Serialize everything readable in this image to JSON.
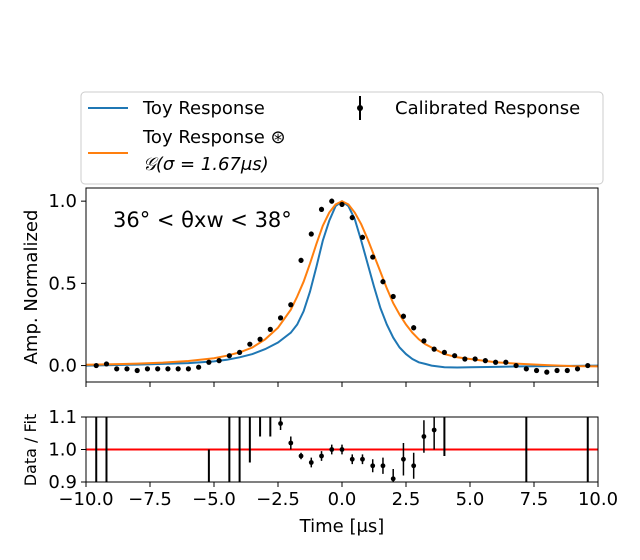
{
  "colors": {
    "toy": "#1f77b4",
    "conv": "#ff7f0e",
    "data": "#000000",
    "ratio_line": "#ff0000",
    "frame": "#000000"
  },
  "legend": {
    "toy": "Toy Response",
    "conv_line1": "Toy Response ⊛",
    "conv_line2": "𝒢(σ = 1.67μs)",
    "data": "Calibrated Response"
  },
  "main": {
    "annotation": "36° < θxw < 38°",
    "ylabel": "Amp. Normalized",
    "yticks": [
      0.0,
      0.5,
      1.0
    ],
    "ytick_labels": [
      "0.0",
      "0.5",
      "1.0"
    ]
  },
  "ratio": {
    "ylabel": "Data / Fit",
    "xlabel": "Time [μs]",
    "yticks": [
      0.9,
      1.0,
      1.1
    ],
    "ytick_labels": [
      "0.9",
      "1.0",
      "1.1"
    ],
    "xticks": [
      -10,
      -7.5,
      -5,
      -2.5,
      0,
      2.5,
      5,
      7.5,
      10
    ],
    "xtick_labels": [
      "−10.0",
      "−7.5",
      "−5.0",
      "−2.5",
      "0.0",
      "2.5",
      "5.0",
      "7.5",
      "10.0"
    ]
  },
  "chart_data": [
    {
      "type": "line",
      "panel": "main",
      "xlim": [
        -10,
        10
      ],
      "ylim": [
        -0.1,
        1.08
      ],
      "xlabel": "",
      "ylabel": "Amp. Normalized",
      "legend_placement": "above",
      "series": [
        {
          "name": "Toy Response",
          "x": [
            -10,
            -9,
            -8,
            -7,
            -6,
            -5,
            -4.5,
            -4,
            -3.5,
            -3,
            -2.5,
            -2,
            -1.75,
            -1.5,
            -1.25,
            -1,
            -0.75,
            -0.5,
            -0.25,
            0,
            0.25,
            0.5,
            0.75,
            1,
            1.25,
            1.5,
            1.75,
            2,
            2.25,
            2.5,
            2.75,
            3,
            3.25,
            3.5,
            4,
            4.5,
            5,
            6,
            7,
            8,
            9,
            10
          ],
          "y": [
            0.0,
            0.003,
            0.006,
            0.01,
            0.015,
            0.025,
            0.035,
            0.05,
            0.07,
            0.1,
            0.14,
            0.2,
            0.25,
            0.33,
            0.45,
            0.6,
            0.76,
            0.88,
            0.97,
            1.0,
            0.97,
            0.89,
            0.76,
            0.62,
            0.48,
            0.35,
            0.25,
            0.17,
            0.11,
            0.07,
            0.04,
            0.02,
            0.01,
            0.0,
            -0.01,
            -0.012,
            -0.01,
            -0.008,
            -0.005,
            -0.003,
            -0.002,
            0.0
          ]
        },
        {
          "name": "Toy Response ⊛ 𝒢(σ = 1.67μs)",
          "x": [
            -10,
            -9,
            -8,
            -7,
            -6,
            -5,
            -4.5,
            -4,
            -3.5,
            -3,
            -2.5,
            -2,
            -1.75,
            -1.5,
            -1.25,
            -1,
            -0.75,
            -0.5,
            -0.25,
            0,
            0.25,
            0.5,
            0.75,
            1,
            1.25,
            1.5,
            1.75,
            2,
            2.25,
            2.5,
            2.75,
            3,
            3.25,
            3.5,
            4,
            4.5,
            5,
            6,
            7,
            8,
            9,
            10
          ],
          "y": [
            0.005,
            0.008,
            0.012,
            0.018,
            0.028,
            0.045,
            0.06,
            0.08,
            0.11,
            0.16,
            0.23,
            0.34,
            0.42,
            0.51,
            0.62,
            0.74,
            0.85,
            0.93,
            0.98,
            1.0,
            0.98,
            0.93,
            0.86,
            0.77,
            0.67,
            0.57,
            0.47,
            0.38,
            0.31,
            0.25,
            0.2,
            0.16,
            0.13,
            0.11,
            0.07,
            0.05,
            0.04,
            0.02,
            0.01,
            0.003,
            -0.003,
            -0.005
          ]
        },
        {
          "name": "Calibrated Response",
          "x": [
            -9.6,
            -9.2,
            -8.8,
            -8.4,
            -8.0,
            -7.6,
            -7.2,
            -6.8,
            -6.4,
            -6.0,
            -5.6,
            -5.2,
            -4.8,
            -4.4,
            -4.0,
            -3.6,
            -3.2,
            -2.8,
            -2.4,
            -2.0,
            -1.6,
            -1.2,
            -0.8,
            -0.4,
            0.0,
            0.4,
            0.8,
            1.2,
            1.6,
            2.0,
            2.4,
            2.8,
            3.2,
            3.6,
            4.0,
            4.4,
            4.8,
            5.2,
            5.6,
            6.0,
            6.4,
            6.8,
            7.2,
            7.6,
            8.0,
            8.4,
            8.8,
            9.2,
            9.6
          ],
          "y": [
            0.0,
            0.01,
            -0.02,
            -0.02,
            -0.03,
            -0.02,
            -0.02,
            -0.02,
            -0.02,
            -0.02,
            -0.01,
            0.02,
            0.03,
            0.06,
            0.08,
            0.13,
            0.16,
            0.22,
            0.29,
            0.37,
            0.64,
            0.8,
            0.95,
            1.0,
            0.98,
            0.9,
            0.78,
            0.66,
            0.51,
            0.42,
            0.3,
            0.23,
            0.15,
            0.1,
            0.08,
            0.06,
            0.04,
            0.04,
            0.03,
            0.02,
            0.02,
            0.0,
            -0.02,
            -0.03,
            -0.04,
            -0.03,
            -0.03,
            -0.02,
            0.0
          ],
          "yerr": [
            0.01,
            0.01,
            0.01,
            0.01,
            0.01,
            0.01,
            0.01,
            0.01,
            0.01,
            0.01,
            0.01,
            0.01,
            0.01,
            0.01,
            0.01,
            0.01,
            0.01,
            0.01,
            0.01,
            0.01,
            0.015,
            0.015,
            0.015,
            0.015,
            0.015,
            0.015,
            0.015,
            0.015,
            0.015,
            0.015,
            0.015,
            0.015,
            0.01,
            0.01,
            0.01,
            0.01,
            0.01,
            0.01,
            0.01,
            0.01,
            0.01,
            0.01,
            0.01,
            0.01,
            0.01,
            0.01,
            0.01,
            0.01,
            0.01
          ]
        }
      ]
    },
    {
      "type": "scatter",
      "panel": "ratio",
      "xlim": [
        -10,
        10
      ],
      "ylim": [
        0.9,
        1.1
      ],
      "xlabel": "Time [μs]",
      "ylabel": "Data / Fit",
      "reference_line": 1.0,
      "series": [
        {
          "name": "",
          "x": [
            -2.4,
            -2.0,
            -1.6,
            -1.2,
            -0.8,
            -0.4,
            0.0,
            0.4,
            0.8,
            1.2,
            1.6,
            2.0,
            2.4,
            2.8,
            3.2,
            3.6
          ],
          "y": [
            1.08,
            1.02,
            0.98,
            0.96,
            0.98,
            1.0,
            1.0,
            0.97,
            0.97,
            0.95,
            0.95,
            0.91,
            0.97,
            0.95,
            1.04,
            1.06
          ],
          "yerr": [
            0.02,
            0.02,
            0.01,
            0.015,
            0.015,
            0.015,
            0.015,
            0.015,
            0.015,
            0.02,
            0.025,
            0.03,
            0.05,
            0.04,
            0.05,
            0.06
          ]
        },
        {
          "name": "",
          "x": [
            -9.6,
            -9.2,
            -5.2,
            -4.4,
            -4.0,
            -3.6,
            -3.2,
            -2.8,
            4.0,
            7.2,
            9.6
          ],
          "ylo": [
            0.9,
            0.9,
            0.9,
            0.9,
            0.9,
            0.96,
            1.04,
            1.04,
            0.98,
            0.9,
            0.9
          ],
          "yhi": [
            1.1,
            1.1,
            1.0,
            1.1,
            1.1,
            1.1,
            1.1,
            1.1,
            1.1,
            1.1,
            1.1
          ]
        }
      ]
    }
  ]
}
